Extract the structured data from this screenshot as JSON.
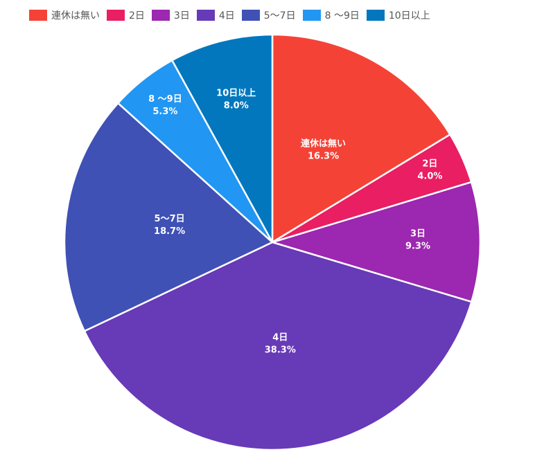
{
  "chart_data": {
    "type": "pie",
    "title": "",
    "legend_placement": "top",
    "start_angle": "top, clockwise",
    "slices": [
      {
        "label": "連休は無い",
        "value": 16.3,
        "display": "16.3%",
        "color": "#F44336"
      },
      {
        "label": "2日",
        "value": 4.0,
        "display": "4.0%",
        "color": "#E91E63"
      },
      {
        "label": "3日",
        "value": 9.3,
        "display": "9.3%",
        "color": "#9C27B0"
      },
      {
        "label": "4日",
        "value": 38.3,
        "display": "38.3%",
        "color": "#673AB7"
      },
      {
        "label": "5〜7日",
        "value": 18.7,
        "display": "18.7%",
        "color": "#3F51B5"
      },
      {
        "label": "8 〜9日",
        "value": 5.3,
        "display": "5.3%",
        "color": "#2196F3"
      },
      {
        "label": "10日以上",
        "value": 8.0,
        "display": "8.0%",
        "color": "#0277BD"
      }
    ]
  }
}
